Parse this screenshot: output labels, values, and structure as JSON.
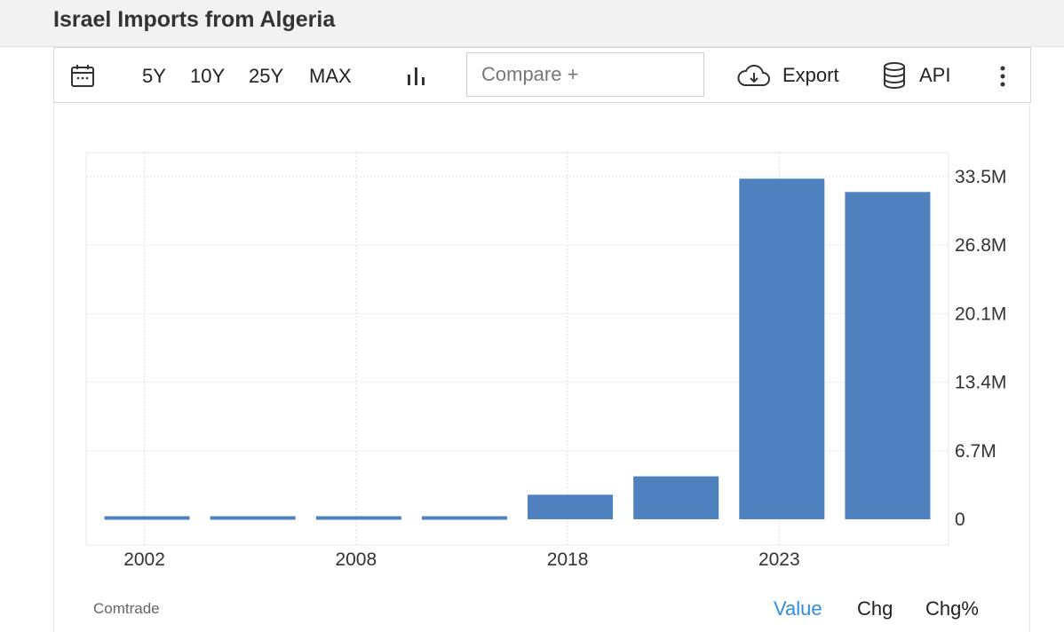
{
  "header": {
    "title": "Israel Imports from Algeria"
  },
  "toolbar": {
    "ranges": [
      "5Y",
      "10Y",
      "25Y",
      "MAX"
    ],
    "compare_placeholder": "Compare +",
    "export_label": "Export",
    "api_label": "API"
  },
  "chart_data": {
    "type": "bar",
    "categories": [
      "2002",
      "",
      "2008",
      "",
      "2018",
      "",
      "2023",
      ""
    ],
    "values": [
      0.3,
      0.3,
      0.3,
      0.3,
      2.4,
      4.2,
      33.3,
      32.0
    ],
    "unit": "M",
    "ylim": [
      0,
      33.5
    ],
    "y_ticks": [
      "0",
      "6.7M",
      "13.4M",
      "20.1M",
      "26.8M",
      "33.5M"
    ],
    "x_ticks": [
      "2002",
      "2008",
      "2018",
      "2023"
    ],
    "color": "#4e81bd",
    "grid": true
  },
  "footer": {
    "source": "Comtrade",
    "tabs": [
      "Value",
      "Chg",
      "Chg%"
    ],
    "active_tab": "Value",
    "active_color": "#2e8fe0"
  }
}
